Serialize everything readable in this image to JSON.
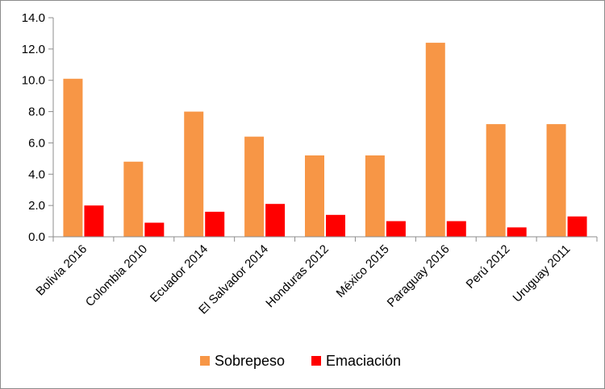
{
  "chart_data": {
    "type": "bar",
    "title": "",
    "xlabel": "",
    "ylabel": "",
    "categories": [
      "Bolivia 2016",
      "Colombia 2010",
      "Ecuador 2014",
      "El Salvador 2014",
      "Honduras 2012",
      "México 2015",
      "Paraguay 2016",
      "Perú 2012",
      "Uruguay 2011"
    ],
    "series": [
      {
        "name": "Sobrepeso",
        "color": "#F79646",
        "values": [
          10.1,
          4.8,
          8.0,
          6.4,
          5.2,
          5.2,
          12.4,
          7.2,
          7.2
        ]
      },
      {
        "name": "Emaciación",
        "color": "#FF0000",
        "values": [
          2.0,
          0.9,
          1.6,
          2.1,
          1.4,
          1.0,
          1.0,
          0.6,
          1.3
        ]
      }
    ],
    "ylim": [
      0,
      14
    ],
    "yticks": [
      "0.0",
      "2.0",
      "4.0",
      "6.0",
      "8.0",
      "10.0",
      "12.0",
      "14.0"
    ],
    "grid": false,
    "legend_position": "bottom-center"
  }
}
